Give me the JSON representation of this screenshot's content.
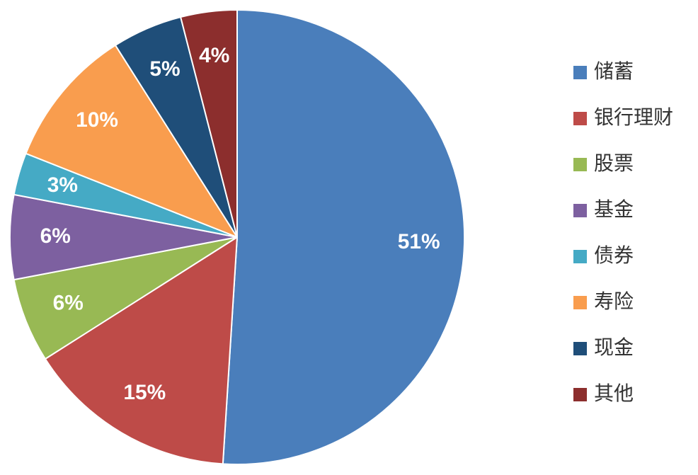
{
  "chart_data": {
    "type": "pie",
    "title": "",
    "legend_position": "right",
    "start_angle_deg": 0,
    "direction": "clockwise",
    "categories": [
      "储蓄",
      "银行理财",
      "股票",
      "基金",
      "债券",
      "寿险",
      "现金",
      "其他"
    ],
    "values": [
      51,
      15,
      6,
      6,
      3,
      10,
      5,
      4
    ],
    "labels": [
      "51%",
      "15%",
      "6%",
      "6%",
      "3%",
      "10%",
      "5%",
      "4%"
    ],
    "colors": [
      "#4a7ebb",
      "#be4b48",
      "#98b954",
      "#7d60a0",
      "#45aac5",
      "#f99d4e",
      "#1f4e79",
      "#8c2e2d"
    ],
    "label_color": "#ffffff",
    "slice_border_color": "#ffffff"
  }
}
